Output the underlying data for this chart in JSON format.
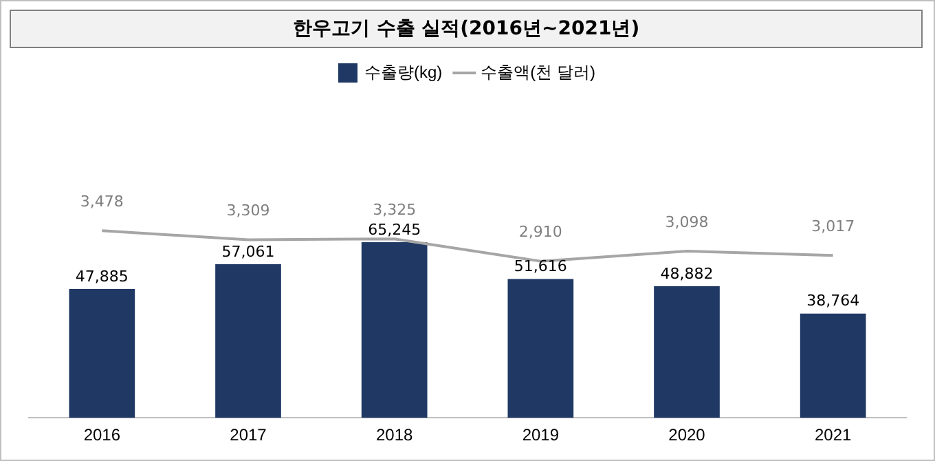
{
  "chart_data": {
    "type": "bar",
    "title": "한우고기 수출 실적(2016년~2021년)",
    "categories": [
      "2016",
      "2017",
      "2018",
      "2019",
      "2020",
      "2021"
    ],
    "series": [
      {
        "name": "수출량(kg)",
        "color": "#1f3864",
        "values": [
          47885,
          57061,
          65245,
          51616,
          48882,
          38764
        ],
        "value_labels": [
          "47,885",
          "57,061",
          "65,245",
          "51,616",
          "48,882",
          "38,764"
        ]
      },
      {
        "name": "수출액(천 달러)",
        "type": "line",
        "axis": "y2",
        "color": "#a6a6a6",
        "values": [
          3478,
          3309,
          3325,
          2910,
          3098,
          3017
        ],
        "value_labels": [
          "3,478",
          "3,309",
          "3,325",
          "2,910",
          "3,098",
          "3,017"
        ]
      }
    ],
    "tick_labels": "x",
    "legend": "top",
    "marker": "none"
  }
}
